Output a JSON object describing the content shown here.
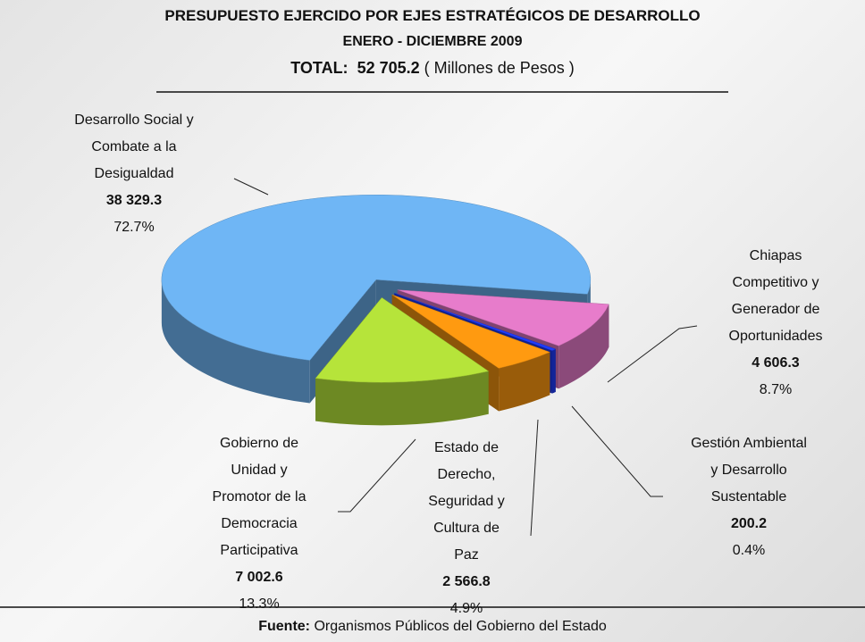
{
  "chart_data": {
    "type": "pie",
    "title": "PRESUPUESTO EJERCIDO POR EJES ESTRATÉGICOS DE DESARROLLO",
    "subtitle": "ENERO - DICIEMBRE 2009",
    "total": {
      "label": "TOTAL:",
      "value": "52 705.2",
      "unit": "( Millones de Pesos )"
    },
    "categories": [
      "Desarrollo Social y Combate a la Desigualdad",
      "Chiapas Competitivo y Generador de Oportunidades",
      "Gestión Ambiental y Desarrollo Sustentable",
      "Estado de Derecho, Seguridad y Cultura de Paz",
      "Gobierno de Unidad y Promotor de la Democracia Participativa"
    ],
    "values": [
      38329.3,
      4606.3,
      200.2,
      2566.8,
      7002.6
    ],
    "value_labels": [
      "38 329.3",
      "4 606.3",
      "200.2",
      "2 566.8",
      "7 002.6"
    ],
    "percent_labels": [
      "72.7%",
      "8.7%",
      "0.4%",
      "4.9%",
      "13.3%"
    ],
    "colors": [
      "#6fb6f5",
      "#e77ccb",
      "#1f3cff",
      "#ff9a10",
      "#b6e43a"
    ],
    "source": {
      "label": "Fuente:",
      "text": "Organismos Públicos del Gobierno del Estado"
    }
  }
}
